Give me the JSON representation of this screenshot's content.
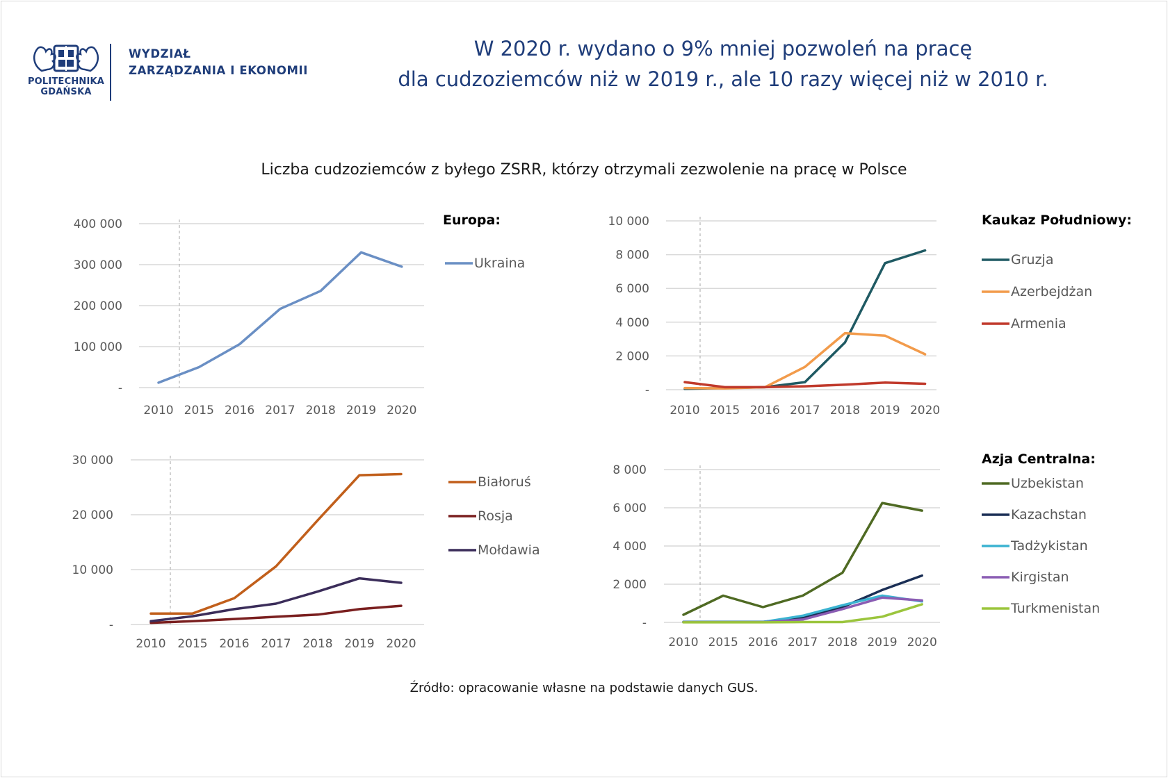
{
  "header": {
    "logo_text_line1": "POLITECHNIKA",
    "logo_text_line2": "GDAŃSKA",
    "faculty_line1": "WYDZIAŁ",
    "faculty_line2": "ZARZĄDZANIA I EKONOMII",
    "headline_line1": "W 2020 r. wydano o 9% mniej pozwoleń na pracę",
    "headline_line2": "dla cudzoziemców niż w 2019 r., ale 10 razy więcej niż w 2010 r."
  },
  "subtitle": "Liczba cudzoziemców z byłego ZSRR, którzy otrzymali zezwolenie na pracę w Polsce",
  "source": "Źródło: opracowanie własne na podstawie danych GUS.",
  "colors": {
    "brand": "#1f3d7a",
    "ukraina": "#6a8fc4",
    "gruzja": "#1f5a63",
    "azerbejdzan": "#f29b4b",
    "armenia": "#c0392b",
    "bialorus": "#c15f1b",
    "rosja": "#7a1f1f",
    "moldawia": "#3b2d5a",
    "uzbekistan": "#4f6a23",
    "kazachstan": "#1a2e55",
    "tadzykistan": "#3bb3d1",
    "kirgistan": "#8a5cb3",
    "turkmenistan": "#9bc53d",
    "grid": "#d9d9d9",
    "axis_text": "#595959"
  },
  "chart_data": [
    {
      "type": "line",
      "panel": "europa",
      "legend_title": "Europa:",
      "categories": [
        "2010",
        "2015",
        "2016",
        "2017",
        "2018",
        "2019",
        "2020"
      ],
      "ylim": [
        0,
        400000
      ],
      "yticks": [
        0,
        100000,
        200000,
        300000,
        400000
      ],
      "ytick_labels": [
        "-",
        "100 000",
        "200 000",
        "300 000",
        "400 000"
      ],
      "grid": true,
      "legend_position": "right",
      "series": [
        {
          "name": "Ukraina",
          "color": "#6a8fc4",
          "values": [
            12000,
            50000,
            106000,
            192000,
            236000,
            330000,
            295000
          ]
        }
      ]
    },
    {
      "type": "line",
      "panel": "kaukaz",
      "legend_title": "Kaukaz Południowy:",
      "categories": [
        "2010",
        "2015",
        "2016",
        "2017",
        "2018",
        "2019",
        "2020"
      ],
      "ylim": [
        0,
        10000
      ],
      "yticks": [
        0,
        2000,
        4000,
        6000,
        8000,
        10000
      ],
      "ytick_labels": [
        "-",
        "2 000",
        "4 000",
        "6 000",
        "8 000",
        "10 000"
      ],
      "grid": true,
      "legend_position": "right",
      "series": [
        {
          "name": "Gruzja",
          "color": "#1f5a63",
          "values": [
            50,
            100,
            150,
            450,
            2800,
            7500,
            8250
          ]
        },
        {
          "name": "Azerbejdżan",
          "color": "#f29b4b",
          "values": [
            100,
            80,
            150,
            1350,
            3350,
            3200,
            2100
          ]
        },
        {
          "name": "Armenia",
          "color": "#c0392b",
          "values": [
            450,
            150,
            150,
            200,
            300,
            420,
            350
          ]
        }
      ]
    },
    {
      "type": "line",
      "panel": "wschod",
      "legend_title": "",
      "categories": [
        "2010",
        "2015",
        "2016",
        "2017",
        "2018",
        "2019",
        "2020"
      ],
      "ylim": [
        0,
        30000
      ],
      "yticks": [
        0,
        10000,
        20000,
        30000
      ],
      "ytick_labels": [
        "-",
        "10 000",
        "20 000",
        "30 000"
      ],
      "grid": true,
      "legend_position": "right",
      "series": [
        {
          "name": "Białoruś",
          "color": "#c15f1b",
          "values": [
            2000,
            2000,
            4800,
            10600,
            19000,
            27200,
            27400
          ]
        },
        {
          "name": "Rosja",
          "color": "#7a1f1f",
          "values": [
            300,
            600,
            1000,
            1400,
            1800,
            2800,
            3400
          ]
        },
        {
          "name": "Mołdawia",
          "color": "#3b2d5a",
          "values": [
            600,
            1500,
            2800,
            3800,
            6000,
            8400,
            7600
          ]
        }
      ]
    },
    {
      "type": "line",
      "panel": "azja",
      "legend_title": "Azja Centralna:",
      "categories": [
        "2010",
        "2015",
        "2016",
        "2017",
        "2018",
        "2019",
        "2020"
      ],
      "ylim": [
        0,
        8000
      ],
      "yticks": [
        0,
        2000,
        4000,
        6000,
        8000
      ],
      "ytick_labels": [
        "-",
        "2 000",
        "4 000",
        "6 000",
        "8 000"
      ],
      "grid": true,
      "legend_position": "right",
      "series": [
        {
          "name": "Uzbekistan",
          "color": "#4f6a23",
          "values": [
            400,
            1400,
            800,
            1400,
            2600,
            6250,
            5850
          ]
        },
        {
          "name": "Kazachstan",
          "color": "#1a2e55",
          "values": [
            30,
            30,
            30,
            250,
            800,
            1700,
            2450
          ]
        },
        {
          "name": "Tadżykistan",
          "color": "#3bb3d1",
          "values": [
            20,
            20,
            20,
            350,
            900,
            1400,
            1100
          ]
        },
        {
          "name": "Kirgistan",
          "color": "#8a5cb3",
          "values": [
            10,
            10,
            10,
            150,
            700,
            1300,
            1150
          ]
        },
        {
          "name": "Turkmenistan",
          "color": "#9bc53d",
          "values": [
            5,
            5,
            5,
            20,
            20,
            300,
            950
          ]
        }
      ]
    }
  ]
}
